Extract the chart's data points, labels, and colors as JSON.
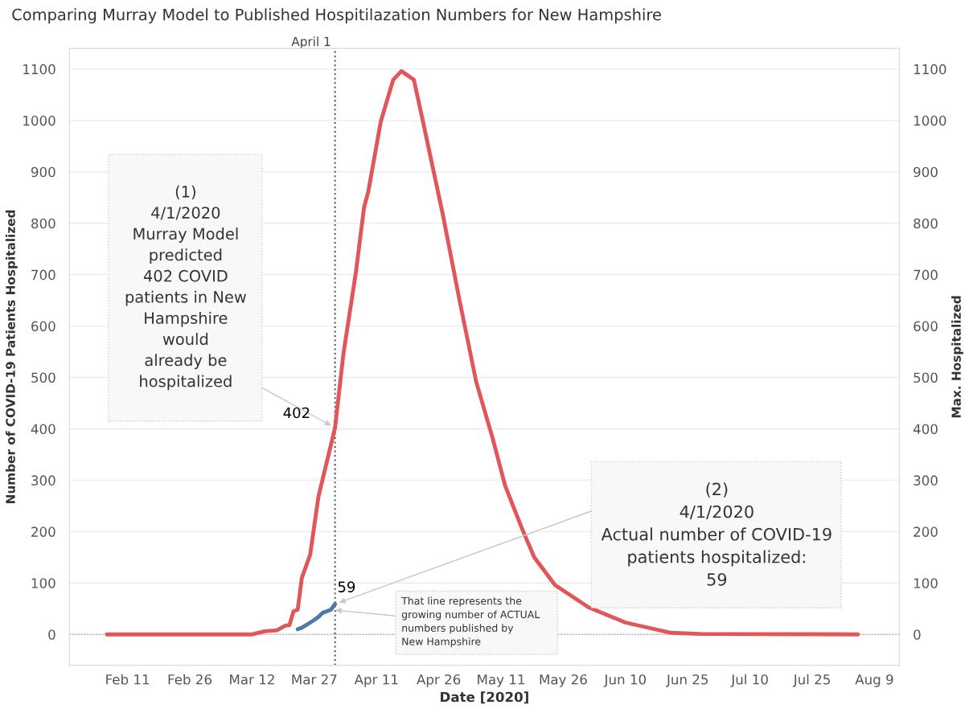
{
  "chart_data": {
    "type": "line",
    "title": "Comparing Murray Model to Published Hospitilazation Numbers for New Hampshire",
    "xlabel": "Date [2020]",
    "ylabel": "Number of COVID-19 Patients Hospitalized",
    "y2label": "Max. Hospitalized",
    "series": [
      {
        "color": "#e15759",
        "x": [
          "2020-02-06",
          "2020-03-12",
          "2020-03-15",
          "2020-03-18",
          "2020-03-20",
          "2020-03-21",
          "2020-03-22",
          "2020-03-23",
          "2020-03-24",
          "2020-03-26",
          "2020-03-28",
          "2020-04-01",
          "2020-04-03",
          "2020-04-06",
          "2020-04-08",
          "2020-04-09",
          "2020-04-12",
          "2020-04-15",
          "2020-04-17",
          "2020-04-20",
          "2020-04-22",
          "2020-04-27",
          "2020-05-01",
          "2020-05-05",
          "2020-05-09",
          "2020-05-12",
          "2020-05-16",
          "2020-05-19",
          "2020-05-24",
          "2020-06-01",
          "2020-06-10",
          "2020-06-21",
          "2020-06-28",
          "2020-08-05"
        ],
        "values": [
          0,
          0,
          6,
          8,
          17,
          18,
          45,
          48,
          110,
          155,
          268,
          402,
          545,
          703,
          831,
          861,
          997,
          1079,
          1096,
          1079,
          1005,
          816,
          650,
          492,
          381,
          289,
          207,
          150,
          96,
          53,
          23,
          3,
          1,
          0
        ]
      },
      {
        "color": "#4e79a7",
        "x": [
          "2020-03-23",
          "2020-03-24",
          "2020-03-25",
          "2020-03-26",
          "2020-03-27",
          "2020-03-28",
          "2020-03-29",
          "2020-03-30",
          "2020-03-31",
          "2020-04-01"
        ],
        "values": [
          10,
          13,
          18,
          23,
          28,
          34,
          42,
          45,
          48,
          59
        ]
      }
    ],
    "xlim": [
      "2020-01-28",
      "2020-08-15"
    ],
    "xticks": [
      {
        "value": "2020-02-11",
        "label": "Feb 11"
      },
      {
        "value": "2020-02-26",
        "label": "Feb 26"
      },
      {
        "value": "2020-03-12",
        "label": "Mar 12"
      },
      {
        "value": "2020-03-27",
        "label": "Mar 27"
      },
      {
        "value": "2020-04-11",
        "label": "Apr 11"
      },
      {
        "value": "2020-04-26",
        "label": "Apr 26"
      },
      {
        "value": "2020-05-11",
        "label": "May 11"
      },
      {
        "value": "2020-05-26",
        "label": "May 26"
      },
      {
        "value": "2020-06-10",
        "label": "Jun 10"
      },
      {
        "value": "2020-06-25",
        "label": "Jun 25"
      },
      {
        "value": "2020-07-10",
        "label": "Jul 10"
      },
      {
        "value": "2020-07-25",
        "label": "Jul 25"
      },
      {
        "value": "2020-08-09",
        "label": "Aug 9"
      }
    ],
    "ylim": [
      -60,
      1140
    ],
    "yticks": [
      0,
      100,
      200,
      300,
      400,
      500,
      600,
      700,
      800,
      900,
      1000,
      1100
    ],
    "y2lim": [
      -60,
      1140
    ],
    "y2ticks": [
      0,
      100,
      200,
      300,
      400,
      500,
      600,
      700,
      800,
      900,
      1000,
      1100
    ],
    "ref_lines": [
      {
        "axis": "x",
        "value": "2020-04-01",
        "label": "April 1",
        "line_style": "dotted",
        "color": "#555555"
      },
      {
        "axis": "y",
        "value": 0,
        "line_style": "dotted",
        "color": "#aaaaaa"
      }
    ],
    "annotations": [
      {
        "text": "402",
        "x": "2020-04-01",
        "y": 402
      },
      {
        "text": "59",
        "x": "2020-04-01",
        "y": 59
      },
      "(1)\n4/1/2020\nMurray Model\npredicted\n402 COVID\npatients in New\nHampshire\nwould\nalready be\nhospitalized",
      {
        "text": "(2)\n4/1/2020\nActual number of COVID-19\npatients hospitalized:\n59",
        "x": "2020-04-01",
        "y": 59
      },
      {
        "text": "That line represents the\ngrowing number of ACTUAL\nnumbers published by\nNew Hampshire",
        "x": "2020-03-31",
        "y": 48
      }
    ],
    "grid": "y",
    "line_style": "solid",
    "marker": "none",
    "legend": false
  }
}
